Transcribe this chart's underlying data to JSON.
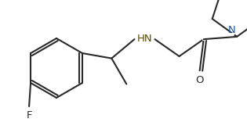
{
  "fig_width": 3.15,
  "fig_height": 1.79,
  "dpi": 100,
  "line_color": "#2a2a2a",
  "line_width": 1.5,
  "bg_color": "#ffffff",
  "label_HN": "HN",
  "label_N": "N",
  "label_O": "O",
  "label_F": "F",
  "font_size": 9.5,
  "xlim": [
    0,
    315
  ],
  "ylim": [
    0,
    179
  ]
}
